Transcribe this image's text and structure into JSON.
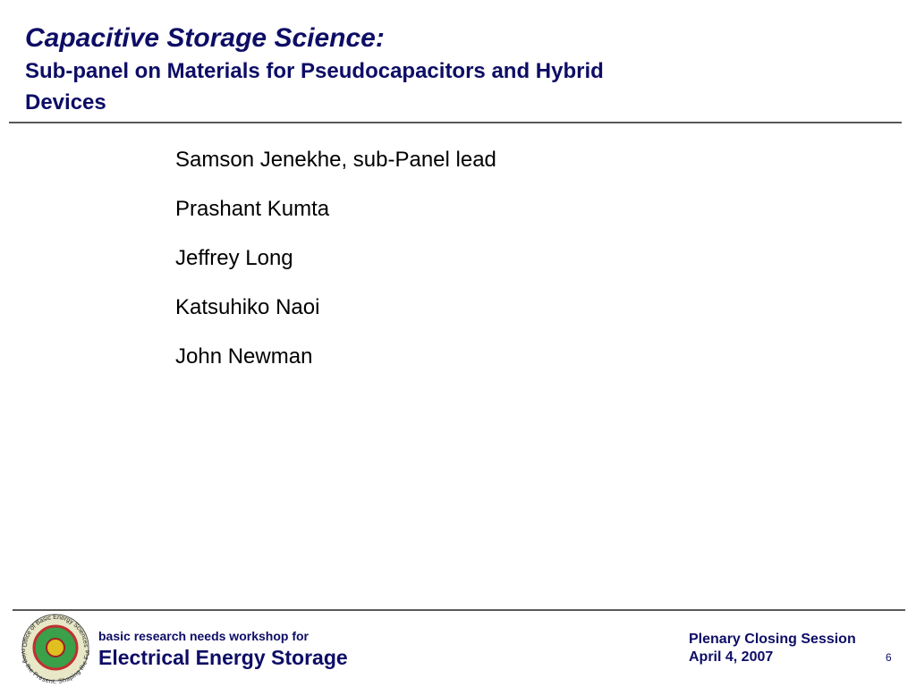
{
  "header": {
    "title": "Capacitive Storage Science:",
    "subtitle_lines": [
      "Sub-panel on Materials for Pseudocapacitors and Hybrid",
      "Devices"
    ]
  },
  "members": [
    "Samson Jenekhe, sub-Panel lead",
    "Prashant Kumta",
    "Jeffrey Long",
    "Katsuhiko Naoi",
    "John Newman"
  ],
  "footer": {
    "logo_top": "Office of Basic Energy Sciences",
    "logo_bottom": "Serving the Present, Shaping the Future",
    "workshop_line": "basic research needs workshop for",
    "workshop_name": "Electrical Energy Storage",
    "session": "Plenary Closing Session",
    "date": "April 4, 2007",
    "page_number": "6"
  }
}
